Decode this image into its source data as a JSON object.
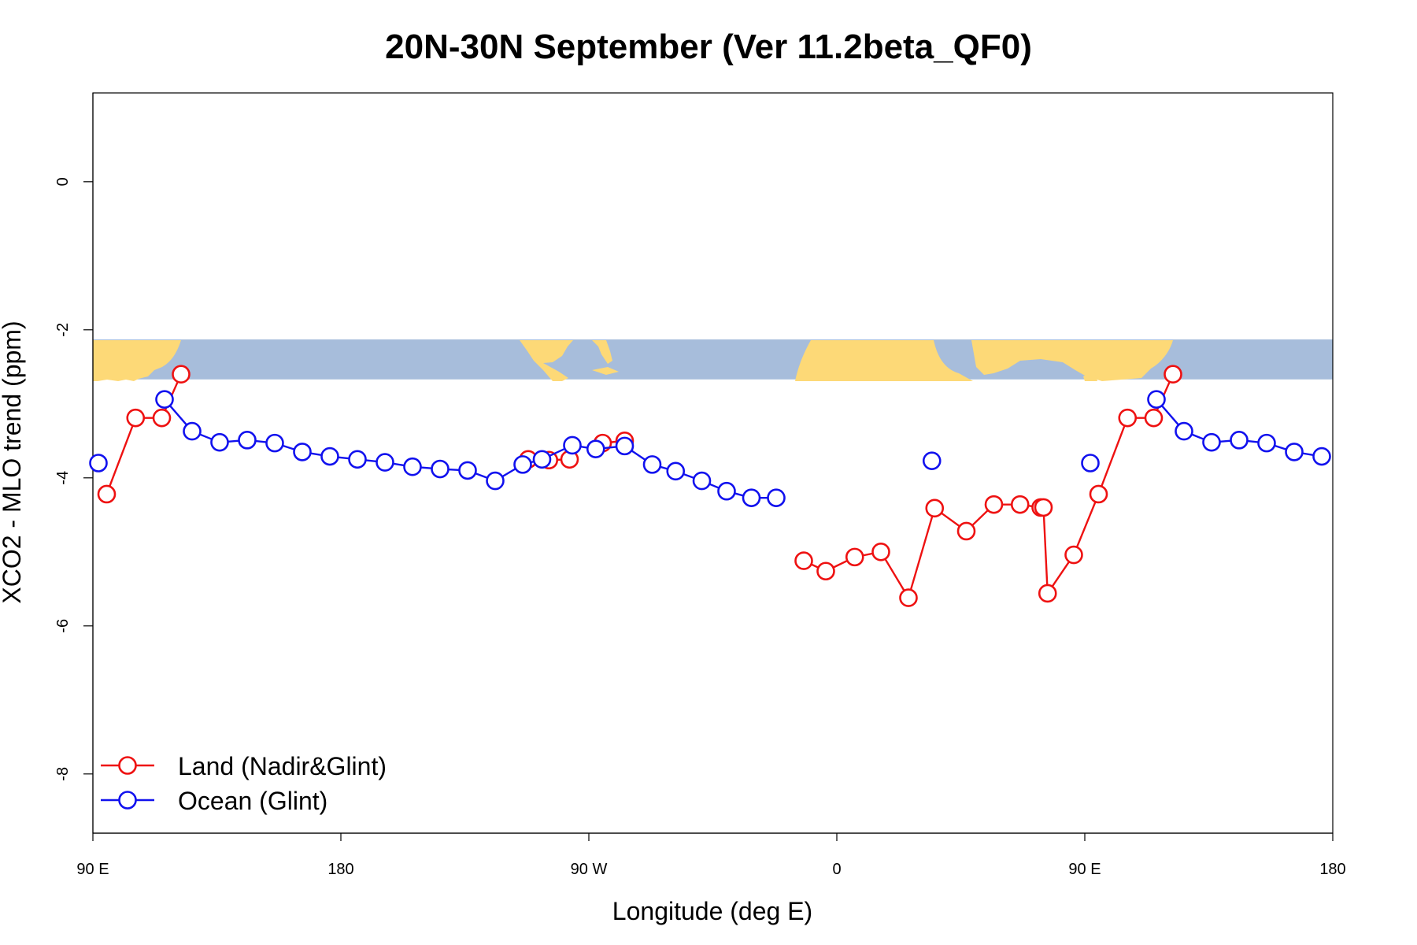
{
  "chart_data": {
    "type": "line",
    "title": "20N-30N September (Ver 11.2beta_QF0)",
    "xlabel": "Longitude (deg E)",
    "ylabel": "XCO2 - MLO trend (ppm)",
    "xlim": [
      90,
      540
    ],
    "ylim": [
      -8.8,
      1.2
    ],
    "x_ticks": [
      {
        "value": 90,
        "label": "90 E"
      },
      {
        "value": 180,
        "label": "180"
      },
      {
        "value": 270,
        "label": "90 W"
      },
      {
        "value": 360,
        "label": "0"
      },
      {
        "value": 450,
        "label": "90 E"
      },
      {
        "value": 540,
        "label": "180"
      }
    ],
    "y_ticks": [
      {
        "value": 0,
        "label": "0"
      },
      {
        "value": -2,
        "label": "-2"
      },
      {
        "value": -4,
        "label": "-4"
      },
      {
        "value": -6,
        "label": "-6"
      },
      {
        "value": -8,
        "label": "-8"
      }
    ],
    "map_band": {
      "ymin": -2.67,
      "ymax": -2.13,
      "land_color": "#fdd977",
      "ocean_color": "#a7bddb"
    },
    "legend": {
      "position": "bottom-left"
    },
    "series": [
      {
        "name": "Land (Nadir&Glint)",
        "color": "#ee1111",
        "segments": [
          [
            [
              95,
              -4.22
            ],
            [
              105.5,
              -3.19
            ],
            [
              115,
              -3.19
            ],
            [
              122,
              -2.6
            ]
          ],
          [
            [
              248,
              -3.75
            ],
            [
              255.5,
              -3.76
            ],
            [
              263,
              -3.75
            ]
          ],
          [
            [
              275,
              -3.53
            ],
            [
              283,
              -3.5
            ]
          ],
          [
            [
              348,
              -5.12
            ],
            [
              356,
              -5.26
            ],
            [
              366.5,
              -5.07
            ],
            [
              376,
              -5.0
            ],
            [
              386,
              -5.62
            ],
            [
              395.5,
              -4.41
            ],
            [
              407,
              -4.72
            ],
            [
              417,
              -4.36
            ],
            [
              426.5,
              -4.36
            ],
            [
              434,
              -4.4
            ],
            [
              435,
              -4.4
            ],
            [
              436.5,
              -5.56
            ],
            [
              446,
              -5.04
            ],
            [
              455,
              -4.22
            ],
            [
              465.5,
              -3.19
            ],
            [
              475,
              -3.19
            ],
            [
              482,
              -2.6
            ]
          ]
        ]
      },
      {
        "name": "Ocean (Glint)",
        "color": "#1111ee",
        "segments": [
          [
            [
              92,
              -3.8
            ]
          ],
          [
            [
              116,
              -2.94
            ],
            [
              126,
              -3.37
            ],
            [
              136,
              -3.52
            ],
            [
              146,
              -3.49
            ],
            [
              156,
              -3.53
            ],
            [
              166,
              -3.65
            ],
            [
              176,
              -3.71
            ],
            [
              186,
              -3.75
            ],
            [
              196,
              -3.79
            ],
            [
              206,
              -3.85
            ],
            [
              216,
              -3.88
            ],
            [
              226,
              -3.9
            ],
            [
              236,
              -4.04
            ],
            [
              246,
              -3.82
            ],
            [
              253,
              -3.75
            ],
            [
              264,
              -3.56
            ],
            [
              272.5,
              -3.61
            ],
            [
              283,
              -3.57
            ],
            [
              293,
              -3.82
            ],
            [
              301.5,
              -3.91
            ],
            [
              311,
              -4.04
            ],
            [
              320,
              -4.18
            ],
            [
              329,
              -4.27
            ],
            [
              338,
              -4.27
            ]
          ],
          [
            [
              394.5,
              -3.77
            ]
          ],
          [
            [
              452,
              -3.8
            ]
          ],
          [
            [
              476,
              -2.94
            ],
            [
              486,
              -3.37
            ],
            [
              496,
              -3.52
            ],
            [
              506,
              -3.49
            ],
            [
              516,
              -3.53
            ],
            [
              526,
              -3.65
            ],
            [
              536,
              -3.71
            ]
          ]
        ]
      }
    ]
  }
}
